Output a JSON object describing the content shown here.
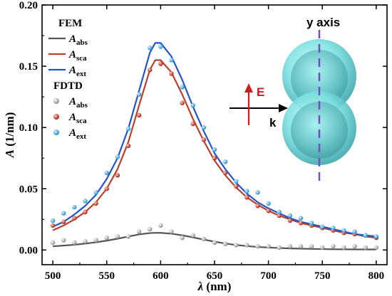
{
  "chart_data": {
    "type": "line",
    "xlabel": "λ (nm)",
    "ylabel": "A (1/nm)",
    "xlim": [
      490,
      810
    ],
    "ylim": [
      -0.012,
      0.2
    ],
    "x_ticks": [
      500,
      550,
      600,
      650,
      700,
      750,
      800
    ],
    "x_tick_labels": [
      "500",
      "550",
      "600",
      "650",
      "700",
      "750",
      "800"
    ],
    "y_ticks": [
      0.0,
      0.05,
      0.1,
      0.15,
      0.2
    ],
    "y_tick_labels": [
      "0.00",
      "0.05",
      "0.10",
      "0.15",
      "0.20"
    ],
    "legend": {
      "position": "top-left",
      "groups": [
        {
          "header": "FEM",
          "style": "line",
          "entries": [
            {
              "main": "A",
              "sub": "abs",
              "color": "#555555"
            },
            {
              "main": "A",
              "sub": "sca",
              "color": "#b7422c"
            },
            {
              "main": "A",
              "sub": "ext",
              "color": "#2255cc"
            }
          ]
        },
        {
          "header": "FDTD",
          "style": "marker",
          "entries": [
            {
              "main": "A",
              "sub": "abs",
              "color": "#9a9a9a"
            },
            {
              "main": "A",
              "sub": "sca",
              "color": "#c82a1a"
            },
            {
              "main": "A",
              "sub": "ext",
              "color": "#2fa8e6"
            }
          ]
        }
      ]
    },
    "series": [
      {
        "method": "FEM",
        "quantity": "abs",
        "style": "line",
        "color": "#555555",
        "x": [
          500,
          510,
          520,
          530,
          540,
          550,
          560,
          570,
          580,
          590,
          595,
          600,
          610,
          620,
          630,
          640,
          650,
          660,
          670,
          680,
          690,
          700,
          720,
          740,
          760,
          780,
          800
        ],
        "y": [
          0.003,
          0.0036,
          0.0043,
          0.0052,
          0.0063,
          0.0076,
          0.0092,
          0.011,
          0.0127,
          0.0138,
          0.014,
          0.014,
          0.0133,
          0.012,
          0.0103,
          0.0085,
          0.0068,
          0.0053,
          0.0041,
          0.0032,
          0.0025,
          0.002,
          0.0013,
          0.0009,
          0.0006,
          0.0005,
          0.0004
        ]
      },
      {
        "method": "FEM",
        "quantity": "sca",
        "style": "line",
        "color": "#b7422c",
        "x": [
          500,
          510,
          520,
          530,
          540,
          550,
          560,
          570,
          580,
          590,
          595,
          600,
          610,
          620,
          630,
          640,
          650,
          660,
          670,
          680,
          690,
          700,
          710,
          720,
          730,
          740,
          750,
          760,
          770,
          780,
          790,
          800
        ],
        "y": [
          0.016,
          0.02,
          0.025,
          0.031,
          0.039,
          0.05,
          0.066,
          0.088,
          0.118,
          0.147,
          0.155,
          0.155,
          0.145,
          0.127,
          0.107,
          0.089,
          0.073,
          0.061,
          0.051,
          0.043,
          0.037,
          0.032,
          0.028,
          0.025,
          0.022,
          0.02,
          0.018,
          0.016,
          0.014,
          0.013,
          0.011,
          0.01
        ]
      },
      {
        "method": "FEM",
        "quantity": "ext",
        "style": "line",
        "color": "#2255cc",
        "x": [
          500,
          510,
          520,
          530,
          540,
          550,
          560,
          570,
          580,
          590,
          595,
          600,
          610,
          620,
          630,
          640,
          650,
          660,
          670,
          680,
          690,
          700,
          710,
          720,
          730,
          740,
          750,
          760,
          770,
          780,
          790,
          800
        ],
        "y": [
          0.019,
          0.023,
          0.029,
          0.036,
          0.045,
          0.058,
          0.075,
          0.099,
          0.13,
          0.161,
          0.169,
          0.169,
          0.158,
          0.139,
          0.117,
          0.097,
          0.079,
          0.066,
          0.055,
          0.046,
          0.039,
          0.034,
          0.03,
          0.026,
          0.023,
          0.021,
          0.019,
          0.017,
          0.015,
          0.013,
          0.012,
          0.011
        ]
      },
      {
        "method": "FDTD",
        "quantity": "abs",
        "style": "marker",
        "color": "#9a9a9a",
        "x": [
          500,
          510,
          520,
          530,
          540,
          550,
          560,
          570,
          580,
          590,
          600,
          610,
          620,
          630,
          640,
          650,
          660,
          670,
          680,
          690,
          700,
          710,
          720,
          730,
          740,
          750,
          760,
          770,
          780,
          790,
          800
        ],
        "y": [
          0.006,
          0.008,
          0.006,
          0.007,
          0.008,
          0.01,
          0.011,
          0.011,
          0.015,
          0.017,
          0.02,
          0.015,
          0.01,
          0.012,
          0.009,
          0.006,
          0.005,
          0.004,
          0.004,
          0.003,
          0.003,
          0.002,
          0.003,
          0.003,
          0.003,
          0.002,
          0.003,
          0.002,
          0.003,
          0.002,
          0.002
        ]
      },
      {
        "method": "FDTD",
        "quantity": "sca",
        "style": "marker",
        "color": "#c82a1a",
        "x": [
          500,
          510,
          520,
          530,
          540,
          550,
          560,
          570,
          580,
          590,
          600,
          610,
          620,
          630,
          640,
          650,
          660,
          670,
          680,
          690,
          700,
          710,
          720,
          730,
          740,
          750,
          760,
          770,
          780,
          790,
          800
        ],
        "y": [
          0.02,
          0.023,
          0.026,
          0.031,
          0.038,
          0.05,
          0.061,
          0.085,
          0.11,
          0.147,
          0.152,
          0.144,
          0.12,
          0.103,
          0.09,
          0.075,
          0.063,
          0.052,
          0.043,
          0.036,
          0.032,
          0.028,
          0.024,
          0.022,
          0.02,
          0.018,
          0.016,
          0.014,
          0.013,
          0.012,
          0.01
        ]
      },
      {
        "method": "FDTD",
        "quantity": "ext",
        "style": "marker",
        "color": "#2fa8e6",
        "x": [
          500,
          510,
          520,
          530,
          540,
          550,
          560,
          570,
          580,
          590,
          600,
          610,
          620,
          630,
          640,
          650,
          660,
          670,
          680,
          690,
          700,
          710,
          720,
          730,
          740,
          750,
          760,
          770,
          780,
          790,
          800
        ],
        "y": [
          0.024,
          0.03,
          0.035,
          0.04,
          0.047,
          0.063,
          0.076,
          0.099,
          0.127,
          0.165,
          0.166,
          0.155,
          0.133,
          0.118,
          0.1,
          0.082,
          0.072,
          0.056,
          0.048,
          0.047,
          0.038,
          0.031,
          0.028,
          0.026,
          0.022,
          0.019,
          0.018,
          0.016,
          0.015,
          0.012,
          0.011
        ]
      }
    ],
    "inset": {
      "axis_label": "y axis",
      "e_label": "E",
      "k_label": "k",
      "sphere_color": "#6fe0e0",
      "dash_color": "#7a4ab8",
      "e_color": "#c81e1e"
    }
  }
}
